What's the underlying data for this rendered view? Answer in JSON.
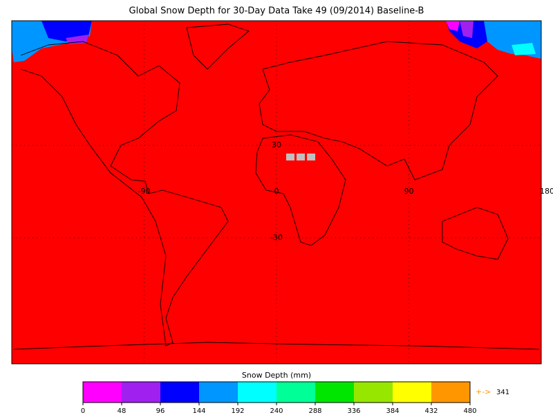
{
  "title": "Global Snow Depth for 30-Day Data Take 49 (09/2014) Baseline-B",
  "map": {
    "background": "#ff0000",
    "lon_labels": [
      -90,
      0,
      90,
      180
    ],
    "lat_labels": [
      30,
      -30
    ]
  },
  "colorbar": {
    "label": "Snow Depth (mm)",
    "ticks": [
      0,
      48,
      96,
      144,
      192,
      240,
      288,
      336,
      384,
      432,
      480
    ],
    "colors": [
      "#ff00ff",
      "#a020f0",
      "#0000ff",
      "#0096ff",
      "#00ffff",
      "#00ff96",
      "#00e600",
      "#96e600",
      "#ffff00",
      "#ff9600"
    ],
    "overflow": {
      "arrow": "+->",
      "value": 341,
      "color": "#ff9600"
    }
  }
}
